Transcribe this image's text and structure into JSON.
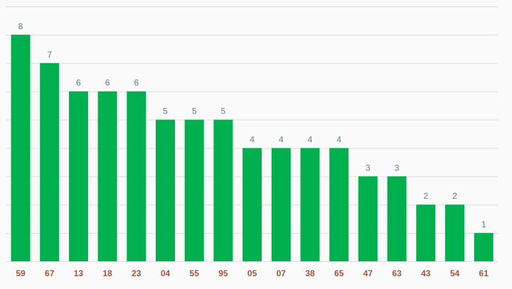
{
  "chart_data": {
    "type": "bar",
    "categories": [
      "59",
      "67",
      "13",
      "18",
      "23",
      "04",
      "55",
      "95",
      "05",
      "07",
      "38",
      "65",
      "47",
      "63",
      "43",
      "54",
      "61"
    ],
    "values": [
      8,
      7,
      6,
      6,
      6,
      5,
      5,
      5,
      4,
      4,
      4,
      4,
      3,
      3,
      2,
      2,
      1
    ],
    "ylim": [
      0,
      9
    ],
    "grid": true,
    "bar_color": "#00b04f",
    "value_label_color": "#5b7f96",
    "tick_label_color": "#a0573d",
    "grid_color": "#dcdcdc",
    "background": "#fafafa"
  }
}
